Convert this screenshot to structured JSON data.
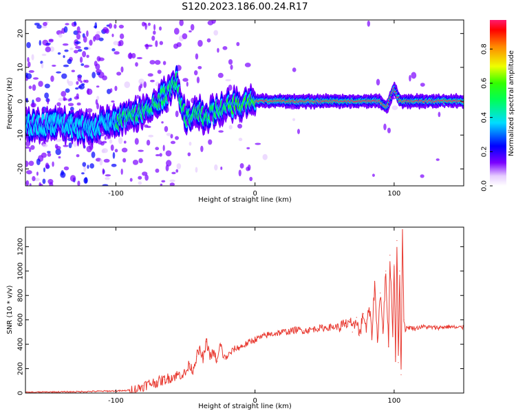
{
  "figure": {
    "title": "S120.2023.186.00.24.R17"
  },
  "chart_data": [
    {
      "type": "heatmap",
      "xlabel": "Height of straight line (km)",
      "ylabel": "Frequency (Hz)",
      "xlim": [
        -165,
        150
      ],
      "ylim": [
        -25,
        24
      ],
      "xticks": [
        -100,
        0,
        100
      ],
      "yticks": [
        -20,
        -10,
        0,
        10,
        20
      ],
      "colorbar": {
        "label": "Normalized spectral amplitude",
        "range": [
          0,
          0.97
        ],
        "ticks": [
          0.0,
          0.2,
          0.4,
          0.6,
          0.8
        ],
        "tick_labels": [
          "0.0",
          "0.2",
          "0.4",
          "0.6",
          "0.8"
        ]
      },
      "ridge": [
        {
          "x": -165,
          "y": -7
        },
        {
          "x": -140,
          "y": -7
        },
        {
          "x": -120,
          "y": -8
        },
        {
          "x": -100,
          "y": -6
        },
        {
          "x": -80,
          "y": -3
        },
        {
          "x": -65,
          "y": 2
        },
        {
          "x": -56,
          "y": 6
        },
        {
          "x": -50,
          "y": -5
        },
        {
          "x": -40,
          "y": -3
        },
        {
          "x": -35,
          "y": -5
        },
        {
          "x": -25,
          "y": -2
        },
        {
          "x": -10,
          "y": -1
        },
        {
          "x": 0,
          "y": 0
        },
        {
          "x": 50,
          "y": 0
        },
        {
          "x": 90,
          "y": 0
        },
        {
          "x": 95,
          "y": -2
        },
        {
          "x": 100,
          "y": 4
        },
        {
          "x": 104,
          "y": 0
        },
        {
          "x": 150,
          "y": 0
        }
      ]
    },
    {
      "type": "line",
      "xlabel": "Height of straight line (km)",
      "ylabel": "SNR (10 * v/v)",
      "xlim": [
        -165,
        150
      ],
      "ylim": [
        0,
        1360
      ],
      "xticks": [
        -100,
        0,
        100
      ],
      "yticks": [
        0,
        200,
        400,
        600,
        800,
        1000,
        1200
      ],
      "series": [
        {
          "color": "#e8382f",
          "x": [
            -165,
            -150,
            -130,
            -110,
            -95,
            -85,
            -80,
            -75,
            -70,
            -65,
            -60,
            -55,
            -50,
            -47,
            -45,
            -42,
            -40,
            -37,
            -35,
            -32,
            -30,
            -27,
            -25,
            -22,
            -20,
            -15,
            -10,
            -5,
            0,
            5,
            10,
            15,
            20,
            25,
            30,
            35,
            40,
            45,
            50,
            55,
            60,
            65,
            68,
            70,
            73,
            75,
            78,
            80,
            82,
            84,
            86,
            88,
            90,
            92,
            94,
            96,
            97,
            99,
            100,
            101,
            102,
            103,
            104,
            105,
            106,
            107,
            108,
            110,
            115,
            120,
            125,
            130,
            135,
            140,
            145,
            150
          ],
          "y": [
            5,
            8,
            10,
            15,
            18,
            30,
            60,
            80,
            90,
            110,
            130,
            150,
            160,
            240,
            180,
            300,
            350,
            280,
            420,
            300,
            330,
            260,
            400,
            280,
            300,
            360,
            380,
            410,
            440,
            460,
            480,
            490,
            500,
            505,
            520,
            510,
            520,
            530,
            535,
            540,
            545,
            550,
            600,
            500,
            620,
            470,
            650,
            520,
            700,
            480,
            900,
            430,
            820,
            500,
            1000,
            380,
            1130,
            500,
            1050,
            300,
            1250,
            250,
            1000,
            150,
            1340,
            600,
            520,
            540,
            530,
            545,
            540,
            535,
            540,
            545,
            535,
            540
          ]
        }
      ]
    }
  ]
}
